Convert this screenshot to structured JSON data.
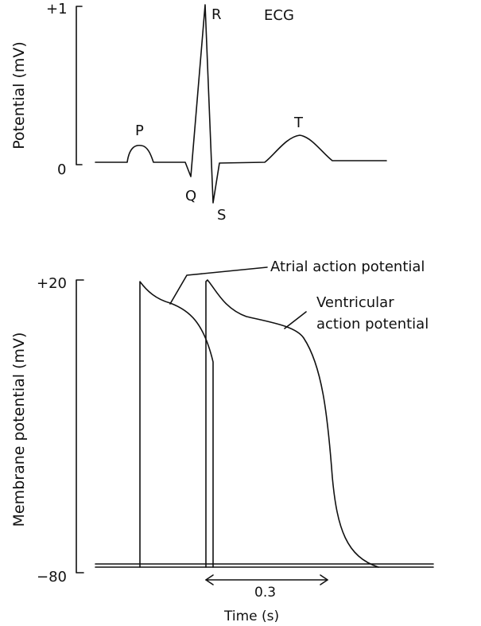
{
  "ecg": {
    "title": "ECG",
    "axis_label": "Potential (mV)",
    "tick_top": "+1",
    "tick_zero": "0",
    "wave_labels": {
      "p": "P",
      "q": "Q",
      "r": "R",
      "s": "S",
      "t": "T"
    }
  },
  "action_potential": {
    "axis_label": "Membrane potential (mV)",
    "tick_top": "+20",
    "tick_bottom": "−80",
    "atrial_label": "Atrial action potential",
    "ventricular_label_line1": "Ventricular",
    "ventricular_label_line2": "action potential",
    "interval_label": "0.3",
    "time_label": "Time (s)"
  }
}
